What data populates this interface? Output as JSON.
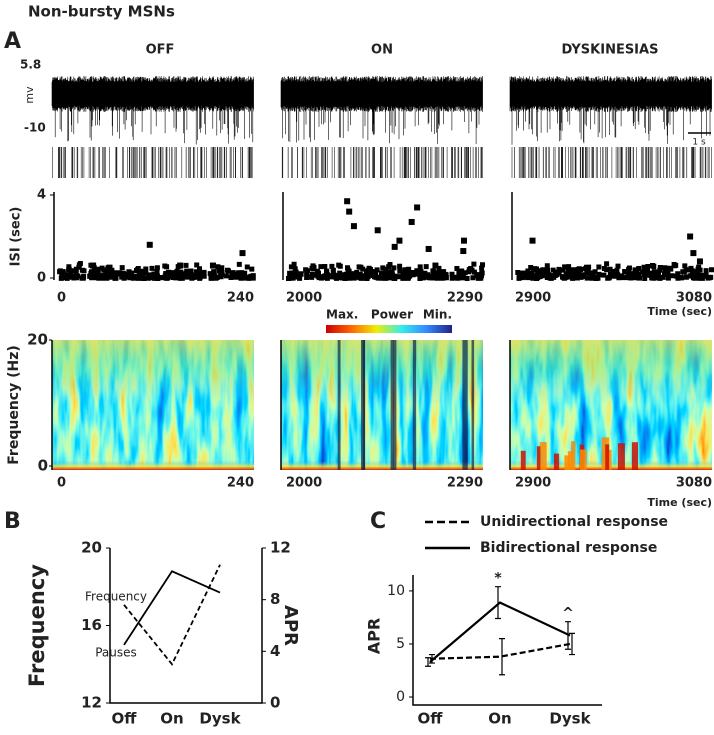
{
  "figure": {
    "title": "Non-bursty MSNs",
    "panel_labels": [
      "A",
      "B",
      "C"
    ],
    "columns": [
      "OFF",
      "ON",
      "DYSKINESIAS"
    ],
    "trace_ylabel": "mv",
    "trace_yticks": [
      5.8,
      -10
    ],
    "scale_bar": "1 s",
    "colorbar_labels": [
      "Max.",
      "Power",
      "Min."
    ]
  },
  "chart_data": [
    {
      "type": "scatter",
      "ylabel": "ISI (sec)",
      "xlim": [
        0,
        240
      ],
      "xticks": [
        0,
        240
      ],
      "ylim": [
        0,
        4
      ],
      "yticks": [
        0,
        4
      ],
      "x": [
        113,
        226,
        44,
        64,
        150,
        190
      ],
      "values": [
        1.6,
        1.2,
        0.6,
        0.5,
        0.6,
        0.6
      ],
      "color": "#000"
    },
    {
      "type": "scatter",
      "xlim": [
        2000,
        2290
      ],
      "xticks": [
        2000,
        2290
      ],
      "ylim": [
        0,
        4
      ],
      "yticks": [],
      "x": [
        2090,
        2093,
        2100,
        2135,
        2160,
        2167,
        2185,
        2193,
        2210,
        2220,
        2261,
        2262
      ],
      "values": [
        3.7,
        3.2,
        2.5,
        2.3,
        1.5,
        1.8,
        2.7,
        3.4,
        1.4,
        0.6,
        1.3,
        1.8
      ],
      "color": "#000"
    },
    {
      "type": "scatter",
      "xlabel": "Time (sec)",
      "xlim": [
        2900,
        3080
      ],
      "xticks": [
        2900,
        3080
      ],
      "ylim": [
        0,
        4
      ],
      "yticks": [],
      "x": [
        2916,
        3060,
        3063,
        3069,
        3020
      ],
      "values": [
        1.8,
        2.0,
        1.2,
        0.8,
        0.3
      ],
      "color": "#000"
    },
    {
      "type": "heatmap",
      "ylabel": "Frequency (Hz)",
      "xlim": [
        0,
        240
      ],
      "xticks": [
        0,
        240
      ],
      "ylim": [
        0,
        20
      ],
      "yticks": [
        0,
        20
      ]
    },
    {
      "type": "heatmap",
      "xlim": [
        2000,
        2290
      ],
      "xticks": [
        2000,
        2290
      ],
      "ylim": [
        0,
        20
      ],
      "yticks": []
    },
    {
      "type": "heatmap",
      "xlabel": "Time (sec)",
      "xlim": [
        2900,
        3080
      ],
      "xticks": [
        2900,
        3080
      ],
      "ylim": [
        0,
        20
      ],
      "yticks": []
    },
    {
      "type": "dual_line",
      "categories": [
        "Off",
        "On",
        "Dysk"
      ],
      "ylabel": "Frequency",
      "y2label": "APR",
      "ylim": [
        12,
        20
      ],
      "yticks": [
        12,
        16,
        20
      ],
      "y2lim": [
        0,
        12
      ],
      "y2ticks": [
        0,
        4,
        8,
        12
      ],
      "series": [
        {
          "name": "Frequency",
          "color": "#000",
          "values": [
            15,
            18.8,
            17.7
          ]
        },
        {
          "name": "Pauses",
          "color": "#000",
          "axis": "y2",
          "dashed": true,
          "values": [
            7.6,
            3,
            10.7
          ]
        }
      ]
    },
    {
      "type": "errorline",
      "categories": [
        "Off",
        "On",
        "Dysk"
      ],
      "ylabel": "APR",
      "ylim": [
        0,
        11.5
      ],
      "yticks": [
        0,
        5,
        10
      ],
      "series": [
        {
          "name": "Bidirectional response",
          "color": "#000",
          "values": [
            3.3,
            8.9,
            5.8
          ],
          "errors": [
            0.4,
            1.5,
            1.3
          ]
        },
        {
          "name": "Unidirectional response",
          "color": "#000",
          "dashed": true,
          "values": [
            3.6,
            3.8,
            5.0
          ],
          "errors": [
            0.4,
            1.7,
            1.0
          ]
        }
      ],
      "annotations": [
        "*",
        "^"
      ]
    }
  ]
}
